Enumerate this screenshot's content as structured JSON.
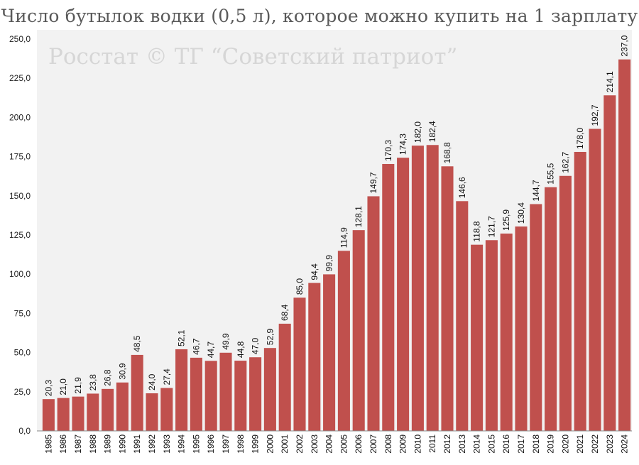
{
  "chart_data": {
    "type": "bar",
    "title": "Число бутылок водки (0,5 л), которое можно купить на 1 зарплату",
    "watermark": "Росстат © ТГ “Советский патриот”",
    "xlabel": "",
    "ylabel": "",
    "ylim": [
      0,
      250
    ],
    "yticks": [
      "0,0",
      "25,0",
      "50,0",
      "75,0",
      "100,0",
      "125,0",
      "150,0",
      "175,0",
      "200,0",
      "225,0",
      "250,0"
    ],
    "grid": false,
    "bar_color": "#c0504d",
    "plot_background": "#f2f2f2",
    "categories": [
      "1985",
      "1986",
      "1987",
      "1988",
      "1989",
      "1990",
      "1991",
      "1992",
      "1993",
      "1994",
      "1995",
      "1996",
      "1997",
      "1998",
      "1999",
      "2000",
      "2001",
      "2002",
      "2003",
      "2004",
      "2005",
      "2006",
      "2007",
      "2008",
      "2009",
      "2010",
      "2011",
      "2012",
      "2013",
      "2014",
      "2015",
      "2016",
      "2017",
      "2018",
      "2019",
      "2020",
      "2021",
      "2022",
      "2023",
      "2024"
    ],
    "values": [
      20.3,
      21.0,
      21.9,
      23.8,
      26.8,
      30.9,
      48.5,
      24.0,
      27.4,
      52.1,
      46.7,
      44.7,
      49.9,
      44.8,
      47.0,
      52.9,
      68.4,
      85.0,
      94.4,
      99.9,
      114.9,
      128.1,
      149.7,
      170.3,
      174.3,
      182.0,
      182.4,
      168.8,
      146.6,
      118.8,
      121.7,
      125.9,
      130.4,
      144.7,
      155.5,
      162.7,
      178.0,
      192.7,
      214.1,
      237.0
    ],
    "value_labels": [
      "20,3",
      "21,0",
      "21,9",
      "23,8",
      "26,8",
      "30,9",
      "48,5",
      "24,0",
      "27,4",
      "52,1",
      "46,7",
      "44,7",
      "49,9",
      "44,8",
      "47,0",
      "52,9",
      "68,4",
      "85,0",
      "94,4",
      "99,9",
      "114,9",
      "128,1",
      "149,7",
      "170,3",
      "174,3",
      "182,0",
      "182,4",
      "168,8",
      "146,6",
      "118,8",
      "121,7",
      "125,9",
      "130,4",
      "144,7",
      "155,5",
      "162,7",
      "178,0",
      "192,7",
      "214,1",
      "237,0"
    ]
  }
}
